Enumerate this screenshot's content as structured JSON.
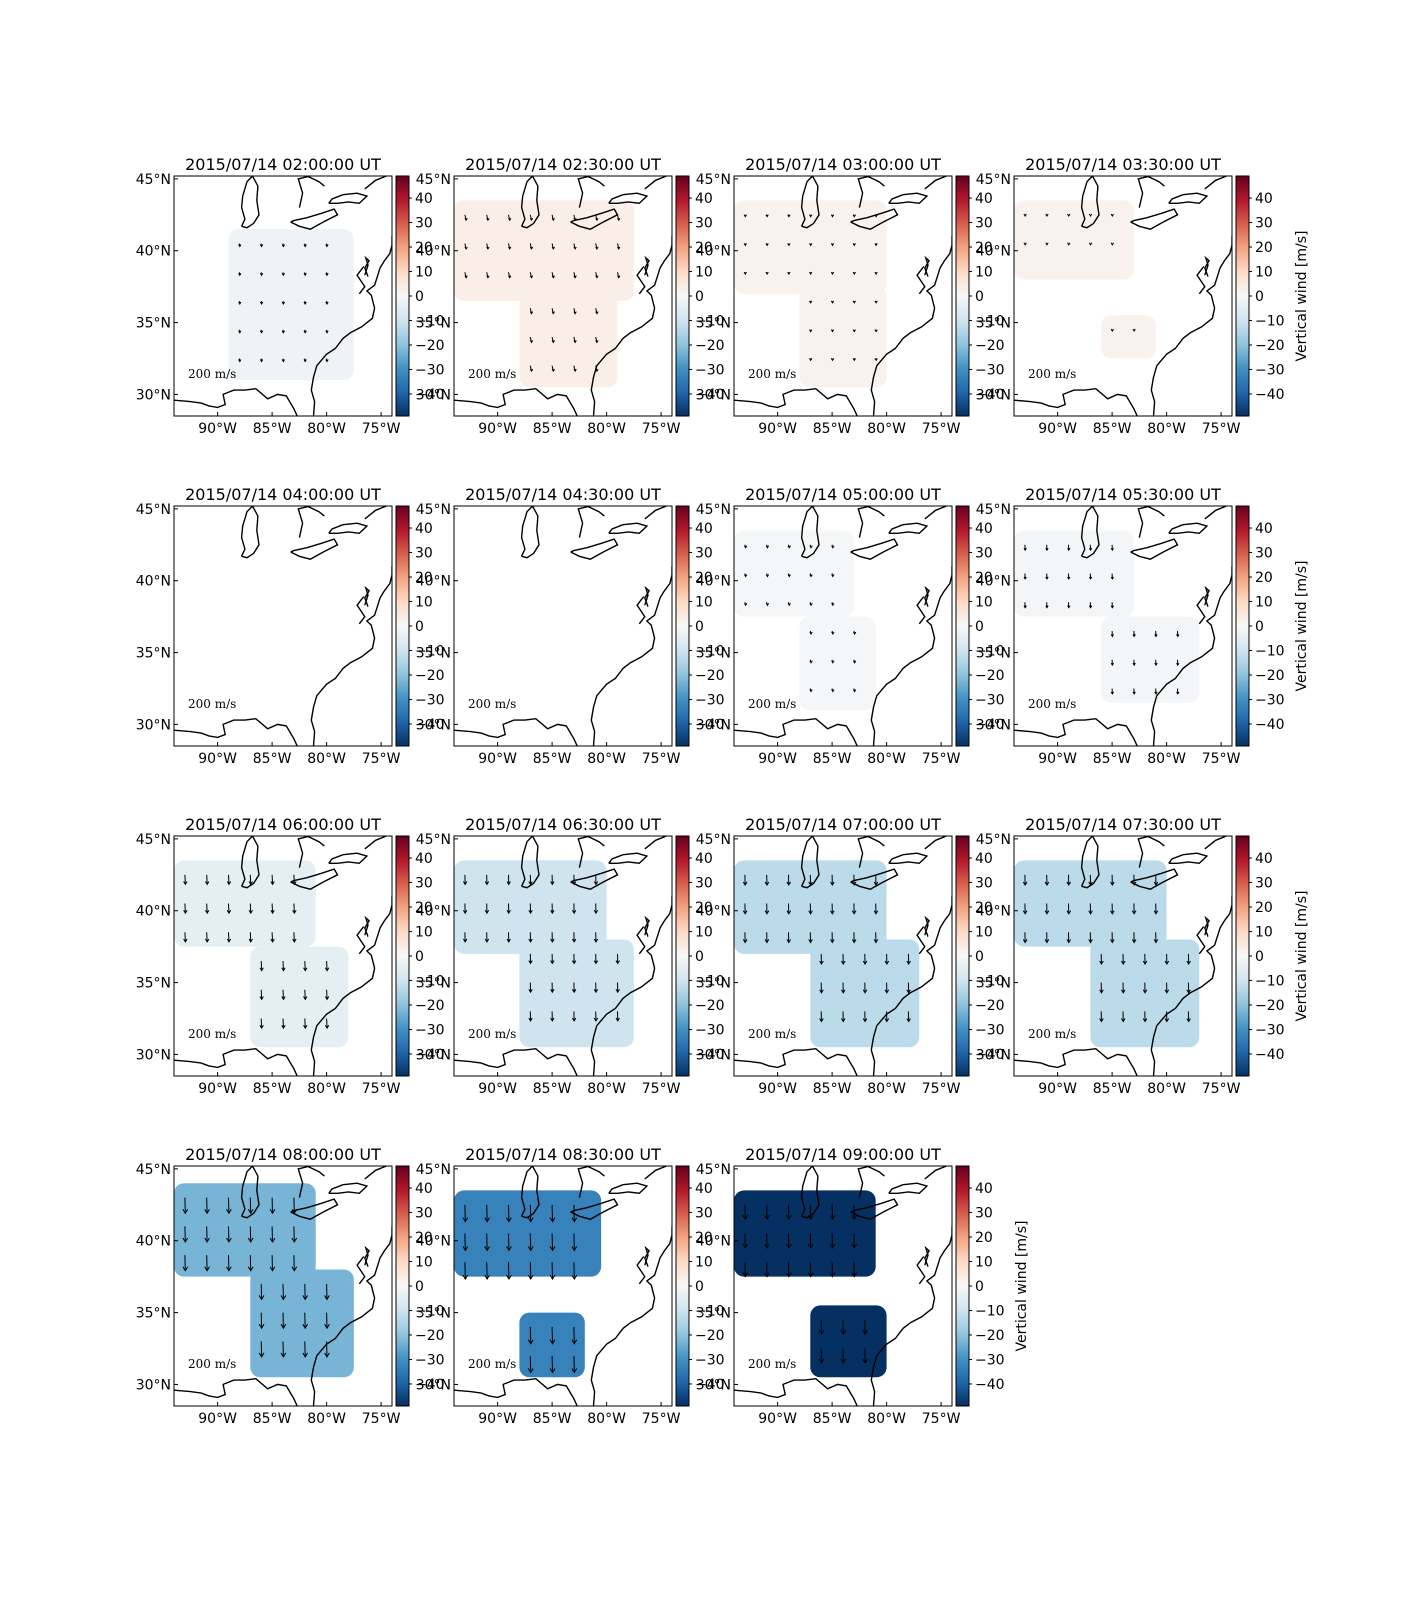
{
  "chart_data": {
    "type": "heatmap",
    "colormap": "RdBu_r",
    "colorbar_label": "Vertical wind [m/s]",
    "colorbar_range": [
      -49,
      49
    ],
    "colorbar_ticks": [
      "40",
      "30",
      "20",
      "10",
      "0",
      "−10",
      "−20",
      "−30",
      "−40"
    ],
    "colorbar_tick_values": [
      40,
      30,
      20,
      10,
      0,
      -10,
      -20,
      -30,
      -40
    ],
    "lon_range": [
      -94,
      -74
    ],
    "lat_range": [
      28.5,
      45.2
    ],
    "x_tick_labels": [
      "90°W",
      "85°W",
      "80°W",
      "75°W"
    ],
    "x_tick_values": [
      -90,
      -85,
      -80,
      -75
    ],
    "y_tick_labels": [
      "45°N",
      "40°N",
      "35°N",
      "30°N"
    ],
    "y_tick_values": [
      45,
      40,
      35,
      30
    ],
    "scale_label": "200 m/s",
    "panels": [
      {
        "title": "2015/07/14 02:00:00 UT",
        "value": -2,
        "arrow_len": 0.25,
        "arrow_tilt": 0.25,
        "regions": [
          {
            "lon": [
              -89,
              -77.5
            ],
            "lat": [
              31,
              41.5
            ]
          }
        ]
      },
      {
        "title": "2015/07/14 02:30:00 UT",
        "value": 3,
        "arrow_len": 0.45,
        "arrow_tilt": 0.45,
        "regions": [
          {
            "lon": [
              -94,
              -77.5
            ],
            "lat": [
              36.5,
              43.5
            ]
          },
          {
            "lon": [
              -88,
              -79
            ],
            "lat": [
              30.5,
              37
            ]
          }
        ]
      },
      {
        "title": "2015/07/14 03:00:00 UT",
        "value": 2,
        "arrow_len": 0.15,
        "arrow_tilt": 0.45,
        "regions": [
          {
            "lon": [
              -94,
              -80
            ],
            "lat": [
              37,
              43.5
            ]
          },
          {
            "lon": [
              -88,
              -80
            ],
            "lat": [
              30.5,
              37.5
            ]
          }
        ]
      },
      {
        "title": "2015/07/14 03:30:00 UT",
        "value": 2,
        "arrow_len": 0.1,
        "arrow_tilt": 0.4,
        "regions": [
          {
            "lon": [
              -94,
              -83
            ],
            "lat": [
              38,
              43.5
            ]
          },
          {
            "lon": [
              -86,
              -81
            ],
            "lat": [
              32.5,
              35.5
            ]
          }
        ]
      },
      {
        "title": "2015/07/14 04:00:00 UT",
        "value": 0,
        "arrow_len": 0,
        "arrow_tilt": 0,
        "regions": []
      },
      {
        "title": "2015/07/14 04:30:00 UT",
        "value": 0,
        "arrow_len": 0,
        "arrow_tilt": 0,
        "regions": []
      },
      {
        "title": "2015/07/14 05:00:00 UT",
        "value": -0.5,
        "arrow_len": 0.25,
        "arrow_tilt": 0.5,
        "regions": [
          {
            "lon": [
              -94,
              -83
            ],
            "lat": [
              37.5,
              43.5
            ]
          },
          {
            "lon": [
              -88,
              -81
            ],
            "lat": [
              31,
              37.5
            ]
          }
        ]
      },
      {
        "title": "2015/07/14 05:30:00 UT",
        "value": -1,
        "arrow_len": 0.45,
        "arrow_tilt": 0.1,
        "regions": [
          {
            "lon": [
              -94,
              -83
            ],
            "lat": [
              37.5,
              43.5
            ]
          },
          {
            "lon": [
              -86,
              -77
            ],
            "lat": [
              31.5,
              37.5
            ]
          }
        ]
      },
      {
        "title": "2015/07/14 06:00:00 UT",
        "value": -5,
        "arrow_len": 0.8,
        "arrow_tilt": 0.1,
        "regions": [
          {
            "lon": [
              -94,
              -81
            ],
            "lat": [
              37.5,
              43.5
            ]
          },
          {
            "lon": [
              -87,
              -78
            ],
            "lat": [
              30.5,
              37.5
            ]
          }
        ]
      },
      {
        "title": "2015/07/14 06:30:00 UT",
        "value": -10,
        "arrow_len": 0.8,
        "arrow_tilt": 0.05,
        "regions": [
          {
            "lon": [
              -94,
              -80
            ],
            "lat": [
              37,
              43.5
            ]
          },
          {
            "lon": [
              -88,
              -77.5
            ],
            "lat": [
              30.5,
              38
            ]
          }
        ]
      },
      {
        "title": "2015/07/14 07:00:00 UT",
        "value": -13,
        "arrow_len": 0.85,
        "arrow_tilt": 0.05,
        "regions": [
          {
            "lon": [
              -94,
              -80
            ],
            "lat": [
              37,
              43.5
            ]
          },
          {
            "lon": [
              -87,
              -77
            ],
            "lat": [
              30.5,
              38
            ]
          }
        ]
      },
      {
        "title": "2015/07/14 07:30:00 UT",
        "value": -13,
        "arrow_len": 0.85,
        "arrow_tilt": 0.05,
        "regions": [
          {
            "lon": [
              -94,
              -80
            ],
            "lat": [
              37.5,
              43.5
            ]
          },
          {
            "lon": [
              -87,
              -77
            ],
            "lat": [
              30.5,
              38
            ]
          }
        ]
      },
      {
        "title": "2015/07/14 08:00:00 UT",
        "value": -23,
        "arrow_len": 1.3,
        "arrow_tilt": 0.05,
        "regions": [
          {
            "lon": [
              -94,
              -81
            ],
            "lat": [
              37.5,
              44
            ]
          },
          {
            "lon": [
              -87,
              -77.5
            ],
            "lat": [
              30.5,
              38
            ]
          }
        ]
      },
      {
        "title": "2015/07/14 08:30:00 UT",
        "value": -33,
        "arrow_len": 1.4,
        "arrow_tilt": 0.05,
        "regions": [
          {
            "lon": [
              -94,
              -80.5
            ],
            "lat": [
              37.5,
              43.5
            ]
          },
          {
            "lon": [
              -88,
              -82
            ],
            "lat": [
              30.5,
              35
            ]
          }
        ]
      },
      {
        "title": "2015/07/14 09:00:00 UT",
        "value": -49,
        "arrow_len": 1.2,
        "arrow_tilt": 0.05,
        "regions": [
          {
            "lon": [
              -94,
              -81
            ],
            "lat": [
              37.5,
              43.5
            ]
          },
          {
            "lon": [
              -87,
              -80
            ],
            "lat": [
              30.5,
              35.5
            ]
          }
        ]
      }
    ]
  }
}
